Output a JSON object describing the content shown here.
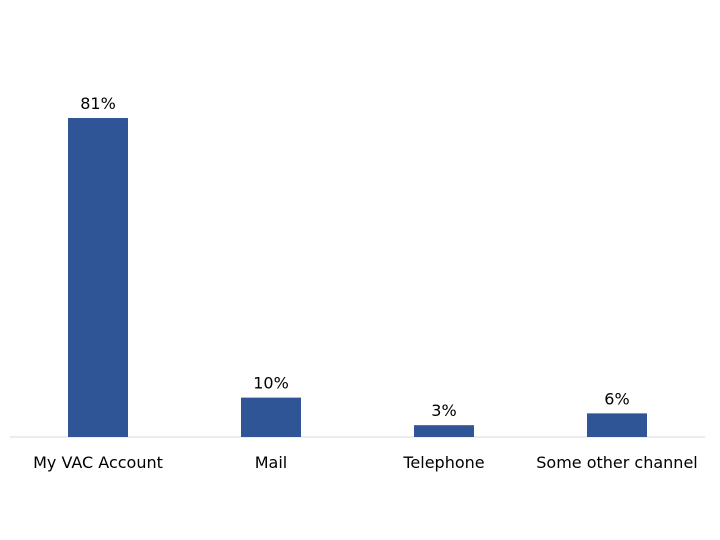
{
  "chart_data": {
    "type": "bar",
    "categories": [
      "My VAC Account",
      "Mail",
      "Telephone",
      "Some other channel"
    ],
    "values": [
      81,
      10,
      3,
      6
    ],
    "data_labels": [
      "81%",
      "10%",
      "3%",
      "6%"
    ],
    "title": "",
    "xlabel": "",
    "ylabel": "",
    "ylim": [
      0,
      81
    ],
    "grid": false,
    "legend": "none",
    "bar_color": "#2F5597",
    "axis_color": "#d9d9d9"
  }
}
